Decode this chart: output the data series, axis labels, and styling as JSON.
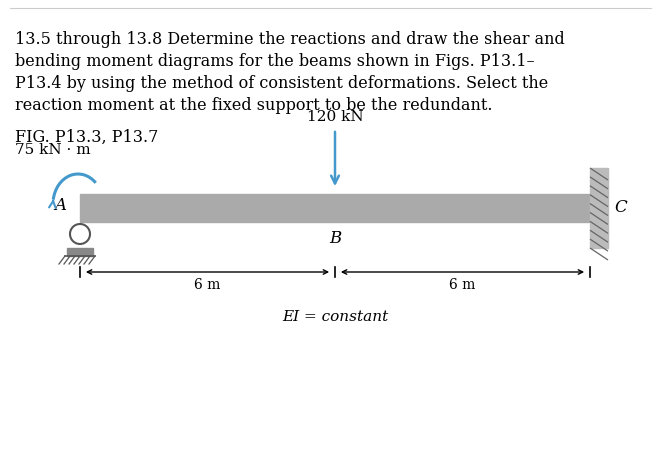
{
  "title_line1": "13.5 through 13.8 Determine the reactions and draw the shear and",
  "title_line2": "bending moment diagrams for the beams shown in Figs. P13.1–",
  "title_line3": "P13.4 by using the method of consistent deformations. Select the",
  "title_line4": "reaction moment at the fixed support to be the redundant.",
  "fig_label": "FIG. P13.3, P13.7",
  "moment_label": "75 kN · m",
  "load_label": "120 kN",
  "point_A": "A",
  "point_B": "B",
  "point_C": "C",
  "dim1": "6 m",
  "dim2": "6 m",
  "ei_label": "EI = constant",
  "beam_color": "#aaaaaa",
  "wall_color": "#999999",
  "arrow_color": "#4499cc",
  "load_arrow_color": "#4499cc",
  "background_color": "#ffffff",
  "text_color": "#000000",
  "font_size_title": 11.5,
  "font_size_label": 11,
  "font_size_dim": 10,
  "font_size_ei": 11
}
